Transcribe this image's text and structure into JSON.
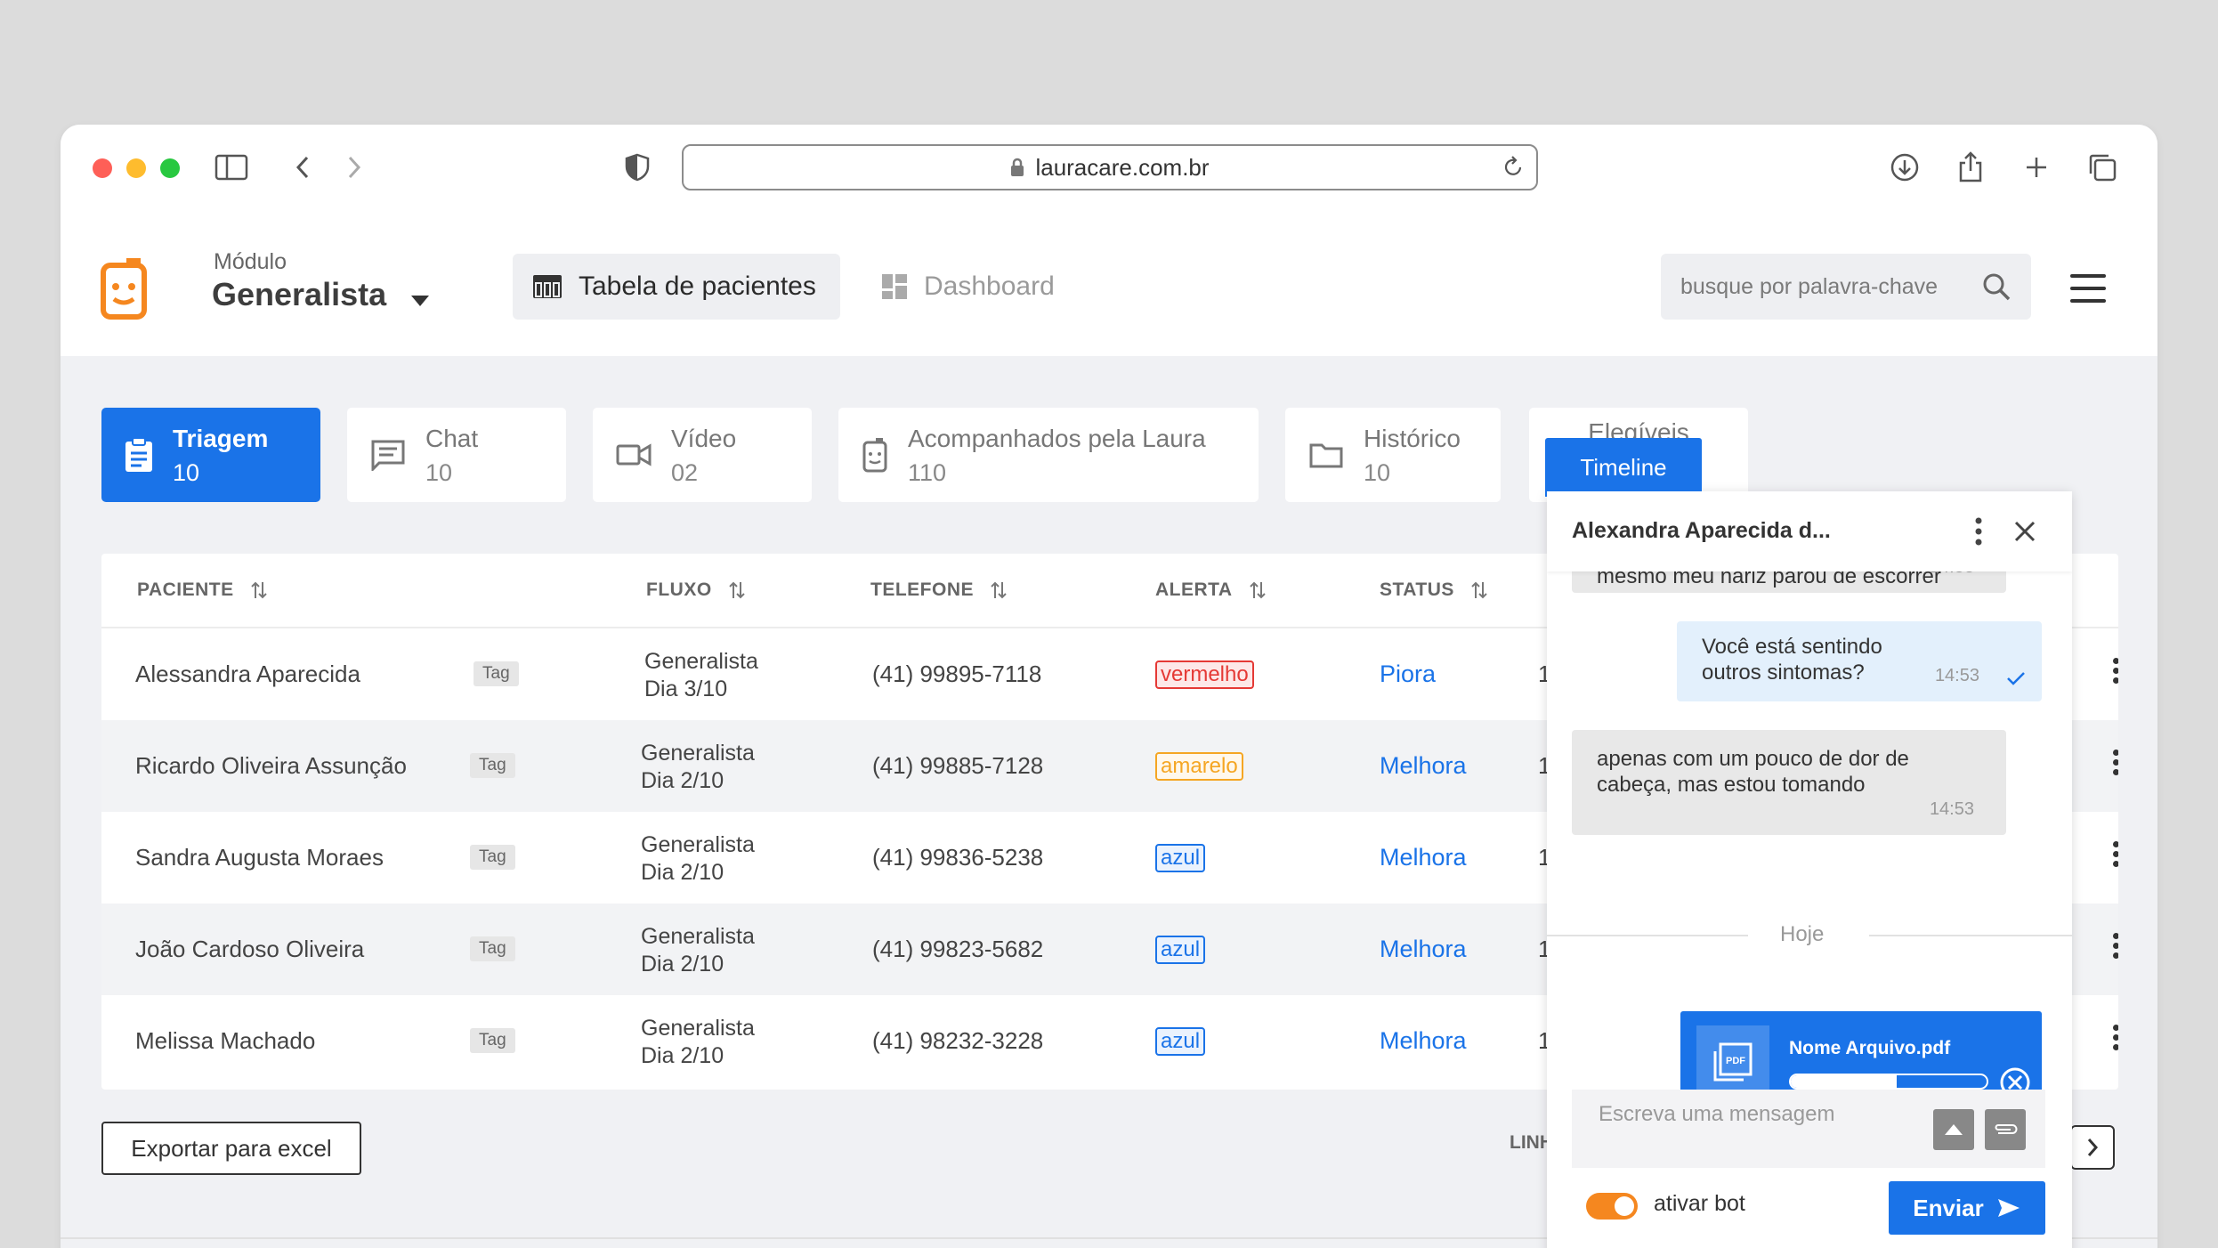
{
  "browser": {
    "url": "lauracare.com.br"
  },
  "header": {
    "module_label": "Módulo",
    "module_name": "Generalista",
    "nav": [
      {
        "label": "Tabela de pacientes",
        "active": true
      },
      {
        "label": "Dashboard",
        "active": false
      }
    ],
    "search_placeholder": "busque por palavra-chave"
  },
  "categories": [
    {
      "label": "Triagem",
      "count": "10",
      "icon": "clipboard-icon",
      "active": true
    },
    {
      "label": "Chat",
      "count": "10",
      "icon": "chat-icon"
    },
    {
      "label": "Vídeo",
      "count": "02",
      "icon": "video-icon"
    },
    {
      "label": "Acompanhados pela Laura",
      "count": "110",
      "icon": "laura-icon"
    },
    {
      "label": "Histórico",
      "count": "10",
      "icon": "folder-icon"
    },
    {
      "label": "Elegíveis"
    }
  ],
  "table": {
    "columns": [
      "PACIENTE",
      "FLUXO",
      "TELEFONE",
      "ALERTA",
      "STATUS"
    ],
    "rows": [
      {
        "name": "Alessandra Aparecida",
        "tag": "Tag",
        "flow": "Generalista",
        "day": "Dia 3/10",
        "phone": "(41) 99895-7118",
        "alert": "vermelho",
        "status": "Piora",
        "extra": "1"
      },
      {
        "name": "Ricardo Oliveira Assunção",
        "tag": "Tag",
        "flow": "Generalista",
        "day": "Dia 2/10",
        "phone": "(41) 99885-7128",
        "alert": "amarelo",
        "status": "Melhora",
        "extra": "1"
      },
      {
        "name": "Sandra Augusta Moraes",
        "tag": "Tag",
        "flow": "Generalista",
        "day": "Dia 2/10",
        "phone": "(41) 99836-5238",
        "alert": "azul",
        "status": "Melhora",
        "extra": "1"
      },
      {
        "name": "João Cardoso Oliveira",
        "tag": "Tag",
        "flow": "Generalista",
        "day": "Dia 2/10",
        "phone": "(41) 99823-5682",
        "alert": "azul",
        "status": "Melhora",
        "extra": "1"
      },
      {
        "name": "Melissa Machado",
        "tag": "Tag",
        "flow": "Generalista",
        "day": "Dia 2/10",
        "phone": "(41) 98232-3228",
        "alert": "azul",
        "status": "Melhora",
        "extra": "1"
      }
    ]
  },
  "alert_colors": {
    "vermelho": "#e53935",
    "amarelo": "#f5a623",
    "azul": "#1a73e8"
  },
  "footer": {
    "export_label": "Exportar para excel",
    "lines_label": "LINH"
  },
  "timeline": {
    "tab_label": "Timeline",
    "contact": "Alexandra Aparecida d...",
    "messages": [
      {
        "dir": "in",
        "text": "estou me sentindo muito bem, hoje mesmo meu nariz parou de escorrer",
        "time": "14:53"
      },
      {
        "dir": "out",
        "text": "Você está sentindo outros sintomas?",
        "time": "14:53"
      },
      {
        "dir": "in",
        "text": "apenas com um pouco de dor de cabeça, mas estou tomando",
        "time": "14:53"
      }
    ],
    "day_divider": "Hoje",
    "file": {
      "name": "Nome Arquivo.pdf",
      "progress": 0.54
    },
    "input_placeholder": "Escreva uma mensagem",
    "bot_label": "ativar bot",
    "bot_enabled": true,
    "send_label": "Enviar"
  },
  "colors": {
    "accent": "#1a73e8",
    "brand": "#f5871f"
  }
}
